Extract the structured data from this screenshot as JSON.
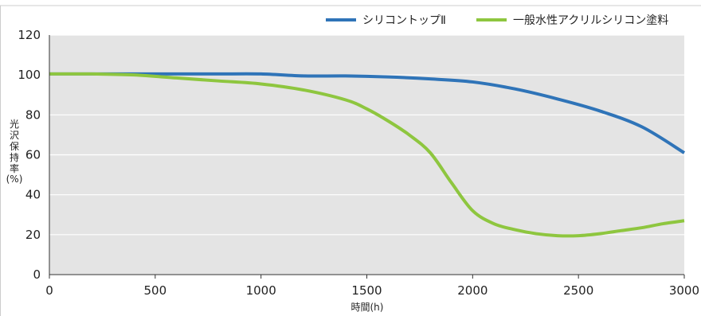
{
  "chart_data": {
    "type": "line",
    "xlabel": "時間(h)",
    "ylabel": "光沢保持率",
    "ylabel_unit": "(%)",
    "xlim": [
      0,
      3000
    ],
    "ylim": [
      0,
      120
    ],
    "xticks": [
      0,
      500,
      1000,
      1500,
      2000,
      2500,
      3000
    ],
    "yticks": [
      0,
      20,
      40,
      60,
      80,
      100,
      120
    ],
    "grid": "horizontal",
    "legend_position": "top-right",
    "colors": {
      "plot_bg": "#e4e4e4",
      "grid": "#ffffff",
      "axis": "#333333",
      "border": "#cccccc"
    },
    "series": [
      {
        "name": "シリコントップⅡ",
        "color": "#2f74b8",
        "x": [
          0,
          200,
          400,
          600,
          800,
          1000,
          1200,
          1400,
          1600,
          1800,
          2000,
          2200,
          2400,
          2600,
          2800,
          3000
        ],
        "y": [
          100.5,
          100.5,
          100.5,
          100.5,
          100.5,
          100.5,
          99.5,
          99.5,
          99,
          98,
          96.5,
          93,
          88,
          82,
          74,
          61
        ]
      },
      {
        "name": "一般水性アクリルシリコン塗料",
        "color": "#8ec63f",
        "x": [
          0,
          200,
          400,
          600,
          800,
          1000,
          1200,
          1400,
          1500,
          1600,
          1700,
          1800,
          1900,
          2000,
          2100,
          2200,
          2300,
          2400,
          2500,
          2600,
          2700,
          2800,
          2900,
          3000
        ],
        "y": [
          100.5,
          100.5,
          100,
          98.5,
          97,
          95.5,
          92.5,
          87.5,
          83,
          77,
          70,
          61,
          46,
          32,
          25.5,
          22.5,
          20.5,
          19.5,
          19.5,
          20.5,
          22,
          23.5,
          25.5,
          27
        ]
      }
    ]
  }
}
